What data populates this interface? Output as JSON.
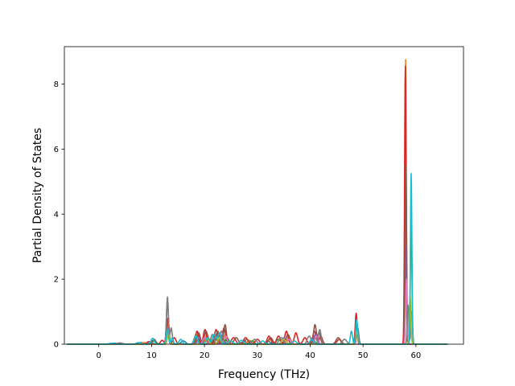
{
  "chart_data": {
    "type": "line",
    "title": "",
    "xlabel": "Frequency (THz)",
    "ylabel": "Partial Density of States",
    "xlim": [
      -6.5,
      69
    ],
    "ylim": [
      0,
      9.15
    ],
    "xticks": [
      0,
      10,
      20,
      30,
      40,
      50,
      60
    ],
    "yticks": [
      0,
      2,
      4,
      6,
      8
    ],
    "grid": false,
    "legend": "none",
    "x_range": [
      -6,
      66
    ],
    "series": [
      {
        "color": "#1f77b4",
        "peaks": [
          [
            3,
            0.03,
            0.5
          ],
          [
            8,
            0.05,
            0.4
          ],
          [
            10.3,
            0.12,
            0.35
          ],
          [
            13.1,
            0.3,
            0.25
          ],
          [
            16,
            0.1,
            0.4
          ],
          [
            18.7,
            0.2,
            0.3
          ],
          [
            20.2,
            0.2,
            0.3
          ],
          [
            22,
            0.2,
            0.35
          ],
          [
            23.5,
            0.2,
            0.3
          ],
          [
            27.5,
            0.1,
            0.4
          ],
          [
            32,
            0.1,
            0.4
          ],
          [
            36,
            0.15,
            0.4
          ],
          [
            41,
            0.2,
            0.3
          ],
          [
            48.8,
            0.6,
            0.2
          ],
          [
            58.1,
            2.8,
            0.16
          ]
        ]
      },
      {
        "color": "#ff7f0e",
        "peaks": [
          [
            8.5,
            0.05,
            0.4
          ],
          [
            13.0,
            0.75,
            0.2
          ],
          [
            18.8,
            0.35,
            0.3
          ],
          [
            20.5,
            0.3,
            0.3
          ],
          [
            22.5,
            0.35,
            0.3
          ],
          [
            24,
            0.3,
            0.3
          ],
          [
            28.5,
            0.12,
            0.4
          ],
          [
            32.5,
            0.15,
            0.4
          ],
          [
            36,
            0.2,
            0.4
          ],
          [
            41,
            0.3,
            0.3
          ],
          [
            48.7,
            0.8,
            0.18
          ],
          [
            58.05,
            8.75,
            0.13
          ]
        ]
      },
      {
        "color": "#2ca02c",
        "peaks": [
          [
            10.5,
            0.1,
            0.35
          ],
          [
            13.2,
            0.4,
            0.2
          ],
          [
            18.5,
            0.2,
            0.3
          ],
          [
            21,
            0.15,
            0.3
          ],
          [
            22.3,
            0.3,
            0.3
          ],
          [
            24.3,
            0.2,
            0.3
          ],
          [
            29,
            0.1,
            0.4
          ],
          [
            34,
            0.15,
            0.4
          ],
          [
            40.5,
            0.2,
            0.3
          ],
          [
            48.9,
            0.5,
            0.2
          ],
          [
            59.1,
            4.0,
            0.14
          ]
        ]
      },
      {
        "color": "#d62728",
        "peaks": [
          [
            9.5,
            0.08,
            0.4
          ],
          [
            12.0,
            0.12,
            0.3
          ],
          [
            13.1,
            0.8,
            0.2
          ],
          [
            14.3,
            0.2,
            0.3
          ],
          [
            18.6,
            0.4,
            0.3
          ],
          [
            20.1,
            0.45,
            0.3
          ],
          [
            22.2,
            0.45,
            0.3
          ],
          [
            23.7,
            0.5,
            0.3
          ],
          [
            25.5,
            0.2,
            0.4
          ],
          [
            27.8,
            0.2,
            0.4
          ],
          [
            30,
            0.15,
            0.4
          ],
          [
            32.2,
            0.25,
            0.35
          ],
          [
            34,
            0.25,
            0.35
          ],
          [
            35.5,
            0.4,
            0.3
          ],
          [
            37.3,
            0.35,
            0.3
          ],
          [
            39,
            0.2,
            0.35
          ],
          [
            40.8,
            0.4,
            0.3
          ],
          [
            42,
            0.25,
            0.3
          ],
          [
            45.5,
            0.15,
            0.4
          ],
          [
            48.7,
            0.95,
            0.18
          ],
          [
            58.0,
            8.55,
            0.14
          ]
        ]
      },
      {
        "color": "#9467bd",
        "peaks": [
          [
            13.0,
            0.5,
            0.2
          ],
          [
            19,
            0.2,
            0.3
          ],
          [
            23,
            0.3,
            0.3
          ],
          [
            35,
            0.2,
            0.4
          ],
          [
            41,
            0.3,
            0.3
          ],
          [
            48.8,
            0.5,
            0.2
          ],
          [
            58.1,
            3.0,
            0.15
          ]
        ]
      },
      {
        "color": "#8c564b",
        "peaks": [
          [
            10.5,
            0.15,
            0.3
          ],
          [
            13.0,
            1.3,
            0.2
          ],
          [
            18.9,
            0.35,
            0.3
          ],
          [
            20.3,
            0.4,
            0.3
          ],
          [
            22.5,
            0.4,
            0.3
          ],
          [
            23.9,
            0.6,
            0.25
          ],
          [
            26,
            0.2,
            0.4
          ],
          [
            28,
            0.15,
            0.4
          ],
          [
            32.5,
            0.2,
            0.4
          ],
          [
            35.8,
            0.3,
            0.35
          ],
          [
            40.9,
            0.6,
            0.25
          ],
          [
            41.7,
            0.35,
            0.25
          ],
          [
            45.3,
            0.2,
            0.4
          ],
          [
            48.8,
            0.7,
            0.18
          ],
          [
            58.1,
            5.5,
            0.14
          ]
        ]
      },
      {
        "color": "#e377c2",
        "peaks": [
          [
            13.1,
            0.4,
            0.2
          ],
          [
            20,
            0.2,
            0.3
          ],
          [
            24,
            0.25,
            0.3
          ],
          [
            36,
            0.15,
            0.4
          ],
          [
            41.2,
            0.25,
            0.3
          ],
          [
            58.2,
            2.0,
            0.15
          ]
        ]
      },
      {
        "color": "#7f7f7f",
        "peaks": [
          [
            4,
            0.04,
            0.5
          ],
          [
            9.8,
            0.08,
            0.35
          ],
          [
            13.0,
            1.45,
            0.18
          ],
          [
            13.7,
            0.5,
            0.2
          ],
          [
            18.3,
            0.25,
            0.3
          ],
          [
            21.5,
            0.3,
            0.3
          ],
          [
            23.2,
            0.4,
            0.3
          ],
          [
            29.5,
            0.15,
            0.4
          ],
          [
            34.5,
            0.2,
            0.4
          ],
          [
            39.8,
            0.25,
            0.35
          ],
          [
            41.8,
            0.45,
            0.25
          ],
          [
            46.5,
            0.15,
            0.4
          ],
          [
            49,
            0.5,
            0.2
          ],
          [
            58.5,
            1.2,
            0.15
          ],
          [
            59.2,
            1.0,
            0.15
          ]
        ]
      },
      {
        "color": "#bcbd22",
        "peaks": [
          [
            13.2,
            0.3,
            0.2
          ],
          [
            20.5,
            0.15,
            0.3
          ],
          [
            22.8,
            0.2,
            0.3
          ],
          [
            35,
            0.15,
            0.4
          ],
          [
            48.8,
            0.4,
            0.2
          ],
          [
            58.9,
            1.5,
            0.15
          ]
        ]
      },
      {
        "color": "#17becf",
        "peaks": [
          [
            2.5,
            0.03,
            0.5
          ],
          [
            7.5,
            0.05,
            0.4
          ],
          [
            10.2,
            0.18,
            0.3
          ],
          [
            13.0,
            0.45,
            0.2
          ],
          [
            13.9,
            0.2,
            0.2
          ],
          [
            15.5,
            0.15,
            0.3
          ],
          [
            18.4,
            0.25,
            0.3
          ],
          [
            20.6,
            0.2,
            0.3
          ],
          [
            21.8,
            0.3,
            0.3
          ],
          [
            22.8,
            0.35,
            0.3
          ],
          [
            25,
            0.1,
            0.4
          ],
          [
            27,
            0.12,
            0.4
          ],
          [
            31,
            0.1,
            0.4
          ],
          [
            37,
            0.1,
            0.4
          ],
          [
            40.3,
            0.15,
            0.35
          ],
          [
            47.8,
            0.4,
            0.2
          ],
          [
            48.8,
            0.75,
            0.18
          ],
          [
            59.1,
            5.25,
            0.14
          ]
        ]
      }
    ]
  }
}
